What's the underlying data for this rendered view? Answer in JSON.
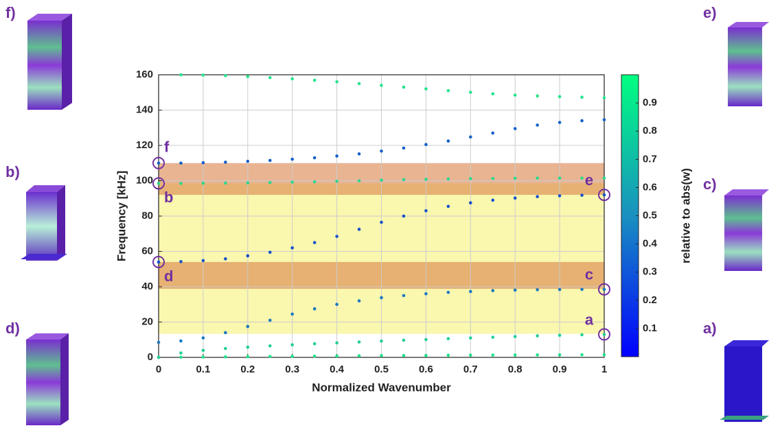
{
  "panels": [
    "f)",
    "b)",
    "d)",
    "e)",
    "c)",
    "a)"
  ],
  "chart_data": {
    "type": "scatter",
    "xlabel": "Normalized Wavenumber",
    "ylabel": "Frequency [kHz]",
    "xlim": [
      0,
      1
    ],
    "ylim": [
      0,
      160
    ],
    "xticks": [
      0,
      0.1,
      0.2,
      0.3,
      0.4,
      0.5,
      0.6,
      0.7,
      0.8,
      0.9,
      1
    ],
    "yticks": [
      0,
      20,
      40,
      60,
      80,
      100,
      120,
      140,
      160
    ],
    "grid": true,
    "bands": [
      {
        "range": [
          13.3,
          98.5
        ],
        "color": "#f7f27a"
      },
      {
        "range": [
          38.8,
          54
        ],
        "color": "#d9824a"
      },
      {
        "range": [
          92,
          110
        ],
        "color": "#d9824a"
      }
    ],
    "x": [
      0,
      0.05,
      0.1,
      0.15,
      0.2,
      0.25,
      0.3,
      0.35,
      0.4,
      0.45,
      0.5,
      0.55,
      0.6,
      0.65,
      0.7,
      0.75,
      0.8,
      0.85,
      0.9,
      0.95,
      1
    ],
    "series": [
      {
        "color": "#1ee38a",
        "values": [
          0,
          0.1,
          0.2,
          0.3,
          0.4,
          0.5,
          0.6,
          0.7,
          0.8,
          0.9,
          1.0,
          1.05,
          1.1,
          1.2,
          1.25,
          1.3,
          1.35,
          1.4,
          1.45,
          1.5,
          1.5
        ]
      },
      {
        "color": "#22cf92",
        "values": [
          0,
          2.5,
          4,
          5,
          5.8,
          6.5,
          7.1,
          7.7,
          8.2,
          8.7,
          9.2,
          9.7,
          10.1,
          10.6,
          11,
          11.4,
          11.8,
          12.2,
          12.5,
          12.8,
          13
        ]
      },
      {
        "color": "#1a78c0",
        "values": [
          8.5,
          9.3,
          11,
          14,
          17.5,
          21,
          24.5,
          27.5,
          30,
          32,
          33.8,
          35,
          36,
          36.8,
          37.3,
          37.8,
          38.1,
          38.3,
          38.4,
          38.5,
          38.5
        ]
      },
      {
        "color": "#1650cc",
        "values": [
          54,
          54.2,
          54.8,
          55.8,
          57.5,
          59.5,
          62,
          65,
          68.5,
          72.5,
          76.5,
          80,
          83,
          85.5,
          87.5,
          89,
          90.2,
          91,
          91.5,
          91.8,
          92
        ]
      },
      {
        "color": "#2bd88f",
        "values": [
          98.5,
          98.5,
          98.6,
          98.7,
          98.8,
          99,
          99.2,
          99.4,
          99.7,
          100,
          100.3,
          100.6,
          100.8,
          101,
          101.2,
          101.3,
          101.4,
          101.5,
          101.5,
          101.5,
          101.5
        ]
      },
      {
        "color": "#1560c8",
        "values": [
          110,
          110,
          110.2,
          110.5,
          111,
          111.5,
          112.2,
          113,
          114,
          115.2,
          116.8,
          118.5,
          120.5,
          122.5,
          124.8,
          127,
          129.5,
          131.5,
          133,
          134,
          134.5
        ]
      },
      {
        "color": "#25e48b",
        "values": [
          null,
          160,
          159.8,
          159.5,
          159,
          158.4,
          157.7,
          156.9,
          156,
          155,
          154,
          153,
          152,
          151,
          150.1,
          149.2,
          148.5,
          148,
          147.6,
          147.3,
          147
        ]
      }
    ],
    "annotations": [
      {
        "label": "f",
        "x": 0,
        "y": 110
      },
      {
        "label": "b",
        "x": 0,
        "y": 98.5
      },
      {
        "label": "d",
        "x": 0,
        "y": 54
      },
      {
        "label": "e",
        "x": 1,
        "y": 92
      },
      {
        "label": "c",
        "x": 1,
        "y": 38.5
      },
      {
        "label": "a",
        "x": 1,
        "y": 13
      }
    ],
    "colorbar": {
      "label": "relative to abs(w)",
      "lim": [
        0,
        1
      ],
      "ticks": [
        0.1,
        0.2,
        0.3,
        0.4,
        0.5,
        0.6,
        0.7,
        0.8,
        0.9
      ],
      "colors": [
        "#0000ff",
        "#1a90c0",
        "#00ff80"
      ]
    }
  }
}
